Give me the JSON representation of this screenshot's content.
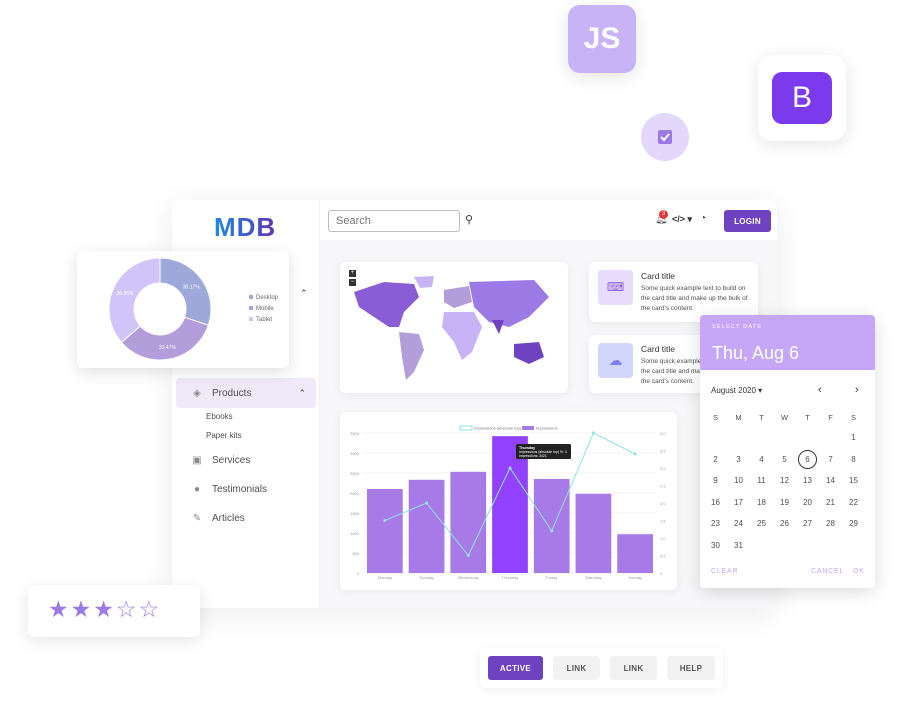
{
  "badges": {
    "js": "JS",
    "bootstrap": "B"
  },
  "header": {
    "logo": "MDB",
    "search_placeholder": "Search",
    "notification_count": "3",
    "login": "LOGIN"
  },
  "sidebar": {
    "items": [
      {
        "label": "Products",
        "icon": "gem-icon"
      },
      {
        "label": "Services",
        "icon": "calendar-icon"
      },
      {
        "label": "Testimonials",
        "icon": "user-icon"
      },
      {
        "label": "Articles",
        "icon": "pencil-icon"
      }
    ],
    "subitems": [
      "Ebooks",
      "Paper kits"
    ]
  },
  "cards": [
    {
      "title": "Card title",
      "text": "Some quick example text to build on the card title and make up the bulk of the card's content.",
      "icon": "laptop-code-icon"
    },
    {
      "title": "Card title",
      "text": "Some quick example text to build on the card title and make up the bulk of the card's content.",
      "icon": "cloud-icon"
    }
  ],
  "map": {
    "zoom_in": "+",
    "zoom_out": "−"
  },
  "datepicker": {
    "label": "SELECT DATE",
    "selected": "Thu, Aug 6",
    "month": "August 2020",
    "weekdays": [
      "S",
      "M",
      "T",
      "W",
      "T",
      "F",
      "S"
    ],
    "first_weekday": 6,
    "days": 31,
    "selected_day": 6,
    "clear": "CLEAR",
    "cancel": "CANCEL",
    "ok": "OK",
    "accent": "#c5a6f7"
  },
  "rating": {
    "value": 3,
    "max": 5,
    "color": "#9c7ae6"
  },
  "button_group": [
    "ACTIVE",
    "LINK",
    "LINK",
    "HELP"
  ],
  "colors": {
    "primary": "#6f42c1",
    "bar": "#a77ae8",
    "bar_active": "#9242ff",
    "line": "#8fe3e3"
  },
  "chart_data": [
    {
      "type": "bar",
      "categories": [
        "Monday",
        "Tuesday",
        "Wednesday",
        "Thursday",
        "Friday",
        "Saturday",
        "Sunday"
      ],
      "series": [
        {
          "name": "Impressions",
          "type": "bar",
          "axis": "left",
          "values": [
            2100,
            2330,
            2530,
            3421,
            2350,
            1980,
            970
          ]
        },
        {
          "name": "Impressions (absolute top) %",
          "type": "line",
          "axis": "right",
          "values": [
            1.5,
            2.0,
            0.5,
            3.0,
            1.2,
            4.0,
            3.4
          ]
        }
      ],
      "ylim": [
        0,
        3500
      ],
      "yticks": [
        "0",
        "500",
        "1000",
        "1500",
        "2000",
        "2500",
        "3000",
        "3500"
      ],
      "y2lim": [
        0,
        4
      ],
      "y2ticks": [
        "0",
        "0.5",
        "1.0",
        "1.5",
        "2.0",
        "2.5",
        "3.0",
        "3.5",
        "4.0"
      ],
      "legend": "top",
      "grid": true,
      "tooltip": {
        "title": "Thursday",
        "lines": [
          "Impressions (absolute top) %: 3",
          "Impressions: 3421"
        ]
      }
    },
    {
      "type": "pie",
      "categories": [
        "Desktop",
        "Mobile",
        "Tablet"
      ],
      "values": [
        30.17,
        33.47,
        36.36
      ],
      "labels": [
        "30.17%",
        "33.47%",
        "36.36%"
      ],
      "colors": [
        "#9fa8da",
        "#b39ddb",
        "#d1c4f9"
      ],
      "legend": "right"
    }
  ]
}
